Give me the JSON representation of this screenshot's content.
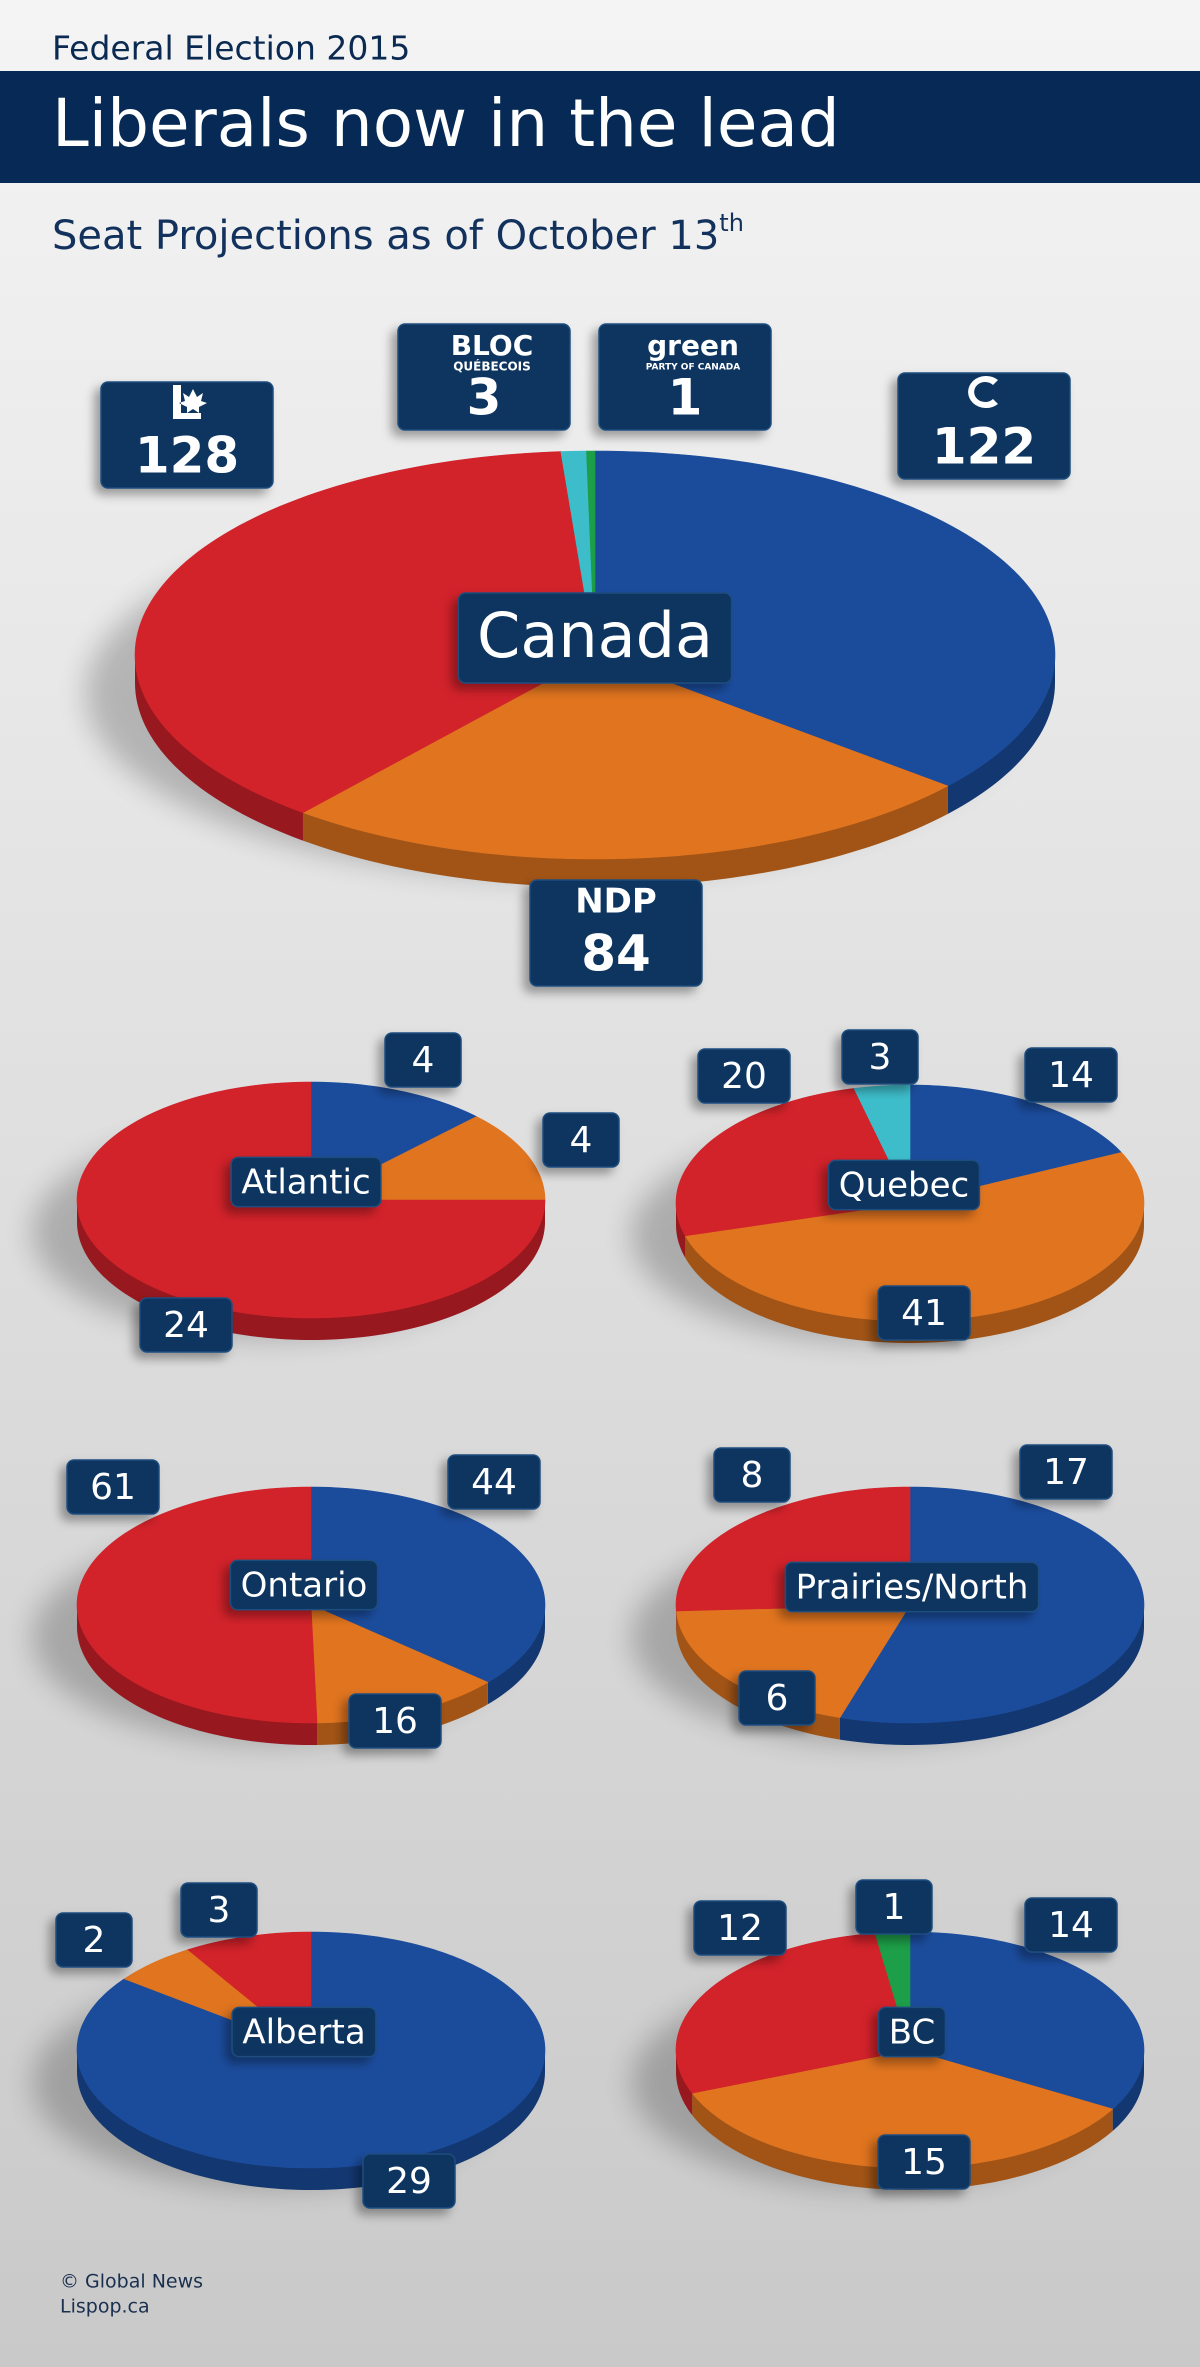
{
  "header": {
    "kicker": "Federal Election 2015",
    "title": "Liberals now in the lead",
    "subtitle": "Seat Projections as of October 13",
    "subtitle_sup": "th"
  },
  "chart_data": [
    {
      "type": "pie",
      "title": "Canada",
      "categories": [
        null,
        "NDP",
        null,
        "BLOC",
        "green"
      ],
      "sublabels": [
        null,
        null,
        null,
        "QUÉBECOIS",
        "PARTY OF CANADA"
      ],
      "values": [
        122,
        84,
        128,
        3,
        1
      ],
      "colors": [
        "#1b4c9c",
        "#e0741f",
        "#d2222a",
        "#3dbdca",
        "#1d9e48"
      ]
    },
    {
      "type": "pie",
      "title": "Atlantic",
      "values": [
        4,
        4,
        24
      ],
      "colors": [
        "#1b4c9c",
        "#e0741f",
        "#d2222a"
      ]
    },
    {
      "type": "pie",
      "title": "Quebec",
      "values": [
        14,
        41,
        20,
        3
      ],
      "colors": [
        "#1b4c9c",
        "#e0741f",
        "#d2222a",
        "#3dbdca"
      ]
    },
    {
      "type": "pie",
      "title": "Ontario",
      "values": [
        44,
        16,
        61
      ],
      "colors": [
        "#1b4c9c",
        "#e0741f",
        "#d2222a"
      ]
    },
    {
      "type": "pie",
      "title": "Prairies/North",
      "values": [
        17,
        6,
        8
      ],
      "colors": [
        "#1b4c9c",
        "#e0741f",
        "#d2222a"
      ]
    },
    {
      "type": "pie",
      "title": "Alberta",
      "values": [
        29,
        2,
        3
      ],
      "colors": [
        "#1b4c9c",
        "#e0741f",
        "#d2222a"
      ]
    },
    {
      "type": "pie",
      "title": "BC",
      "values": [
        14,
        15,
        12,
        1
      ],
      "colors": [
        "#1b4c9c",
        "#e0741f",
        "#d2222a",
        "#1d9e48"
      ]
    }
  ],
  "footer": {
    "credit": "© Global News",
    "source": "Lispop.ca"
  }
}
